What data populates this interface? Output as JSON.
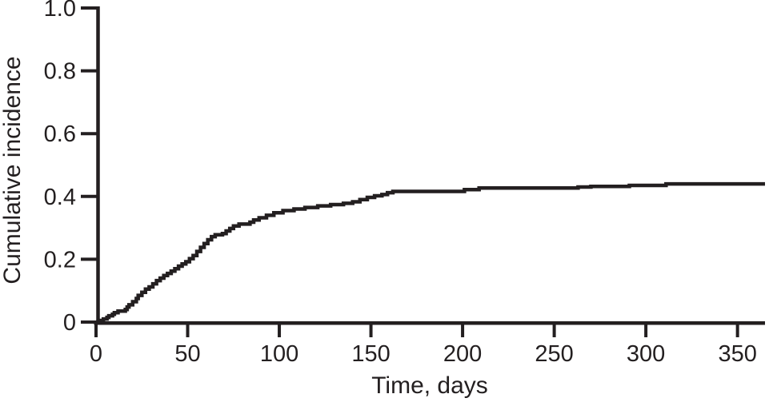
{
  "figure": {
    "background": "#ffffff"
  },
  "chart_data": {
    "type": "line",
    "style": "step-post",
    "title": "",
    "xlabel": "Time, days",
    "ylabel": "Cumulative incidence",
    "xlim": [
      0,
      365
    ],
    "ylim": [
      0,
      1.0
    ],
    "grid": false,
    "legend": "none",
    "axis_color": "#231f20",
    "line_color": "#231f20",
    "background_color": "#ffffff",
    "x_ticks": [
      {
        "value": 0,
        "label": "0"
      },
      {
        "value": 50,
        "label": "50"
      },
      {
        "value": 100,
        "label": "100"
      },
      {
        "value": 150,
        "label": "150"
      },
      {
        "value": 200,
        "label": "200"
      },
      {
        "value": 250,
        "label": "250"
      },
      {
        "value": 300,
        "label": "300"
      },
      {
        "value": 350,
        "label": "350"
      }
    ],
    "y_ticks": [
      {
        "value": 0.0,
        "label": "0"
      },
      {
        "value": 0.2,
        "label": "0.2"
      },
      {
        "value": 0.4,
        "label": "0.4"
      },
      {
        "value": 0.6,
        "label": "0.6"
      },
      {
        "value": 0.8,
        "label": "0.8"
      },
      {
        "value": 1.0,
        "label": "1.0"
      }
    ],
    "series": [
      {
        "name": "Cumulative incidence",
        "points": [
          [
            0,
            0
          ],
          [
            2,
            0.005
          ],
          [
            4,
            0.01
          ],
          [
            6,
            0.015
          ],
          [
            7,
            0.02
          ],
          [
            9,
            0.025
          ],
          [
            10,
            0.03
          ],
          [
            12,
            0.035
          ],
          [
            16,
            0.04
          ],
          [
            17,
            0.048
          ],
          [
            18,
            0.055
          ],
          [
            20,
            0.065
          ],
          [
            22,
            0.075
          ],
          [
            23,
            0.085
          ],
          [
            25,
            0.095
          ],
          [
            27,
            0.105
          ],
          [
            29,
            0.112
          ],
          [
            31,
            0.122
          ],
          [
            33,
            0.132
          ],
          [
            35,
            0.14
          ],
          [
            37,
            0.148
          ],
          [
            39,
            0.155
          ],
          [
            41,
            0.162
          ],
          [
            43,
            0.17
          ],
          [
            45,
            0.178
          ],
          [
            47,
            0.185
          ],
          [
            49,
            0.192
          ],
          [
            51,
            0.202
          ],
          [
            53,
            0.212
          ],
          [
            55,
            0.225
          ],
          [
            57,
            0.238
          ],
          [
            59,
            0.25
          ],
          [
            61,
            0.262
          ],
          [
            63,
            0.272
          ],
          [
            65,
            0.278
          ],
          [
            69,
            0.282
          ],
          [
            71,
            0.29
          ],
          [
            73,
            0.298
          ],
          [
            75,
            0.306
          ],
          [
            78,
            0.312
          ],
          [
            84,
            0.318
          ],
          [
            86,
            0.325
          ],
          [
            89,
            0.332
          ],
          [
            93,
            0.34
          ],
          [
            97,
            0.348
          ],
          [
            102,
            0.355
          ],
          [
            108,
            0.36
          ],
          [
            114,
            0.365
          ],
          [
            121,
            0.37
          ],
          [
            128,
            0.374
          ],
          [
            135,
            0.378
          ],
          [
            140,
            0.383
          ],
          [
            144,
            0.39
          ],
          [
            148,
            0.397
          ],
          [
            152,
            0.402
          ],
          [
            156,
            0.406
          ],
          [
            159,
            0.412
          ],
          [
            162,
            0.416
          ],
          [
            201,
            0.422
          ],
          [
            209,
            0.427
          ],
          [
            263,
            0.43
          ],
          [
            270,
            0.432
          ],
          [
            291,
            0.435
          ],
          [
            311,
            0.44
          ],
          [
            365,
            0.44
          ]
        ]
      }
    ]
  }
}
